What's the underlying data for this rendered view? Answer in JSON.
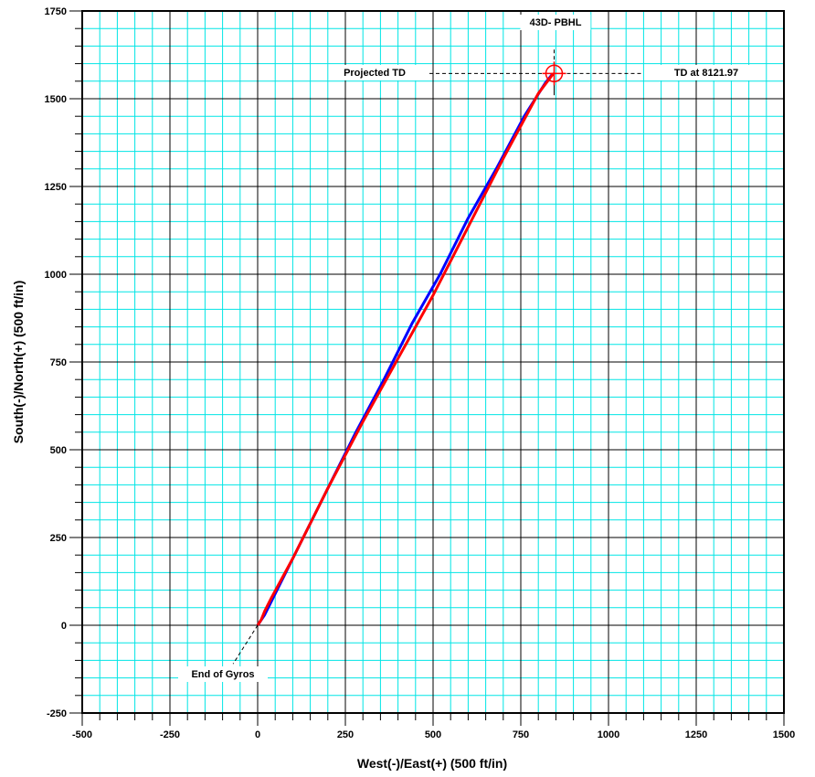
{
  "chart_data": {
    "type": "line",
    "title": "",
    "xlabel": "West(-)/East(+) (500 ft/in)",
    "ylabel": "South(-)/North(+) (500 ft/in)",
    "xlim": [
      -500,
      1500
    ],
    "ylim": [
      -250,
      1750
    ],
    "major_step": 250,
    "minor_step": 50,
    "grid": true,
    "colors": {
      "minor_grid": "#00e5e5",
      "major_grid": "#000000",
      "plan": "#ff0000",
      "actual": "#0000ff"
    },
    "series": [
      {
        "key": "actual",
        "color": "#0000ff",
        "x": [
          0,
          20,
          40,
          80,
          130,
          200,
          280,
          360,
          440,
          520,
          600,
          680,
          760,
          820,
          840
        ],
        "y": [
          0,
          30,
          70,
          150,
          250,
          390,
          550,
          700,
          860,
          1000,
          1160,
          1300,
          1450,
          1545,
          1570
        ]
      },
      {
        "key": "plan",
        "color": "#ff0000",
        "x": [
          0,
          10,
          20,
          40,
          100,
          200,
          300,
          400,
          500,
          600,
          700,
          800,
          840,
          845
        ],
        "y": [
          0,
          15,
          40,
          80,
          190,
          390,
          580,
          760,
          940,
          1135,
          1330,
          1515,
          1568,
          1572
        ]
      }
    ],
    "target": {
      "x": 845,
      "y": 1572
    },
    "annotations": [
      {
        "key": "top",
        "text": "43D- PBHL"
      },
      {
        "key": "projected",
        "text": "Projected TD"
      },
      {
        "key": "td",
        "text": "TD at 8121.97"
      },
      {
        "key": "gyros",
        "text": "End of Gyros"
      }
    ]
  }
}
